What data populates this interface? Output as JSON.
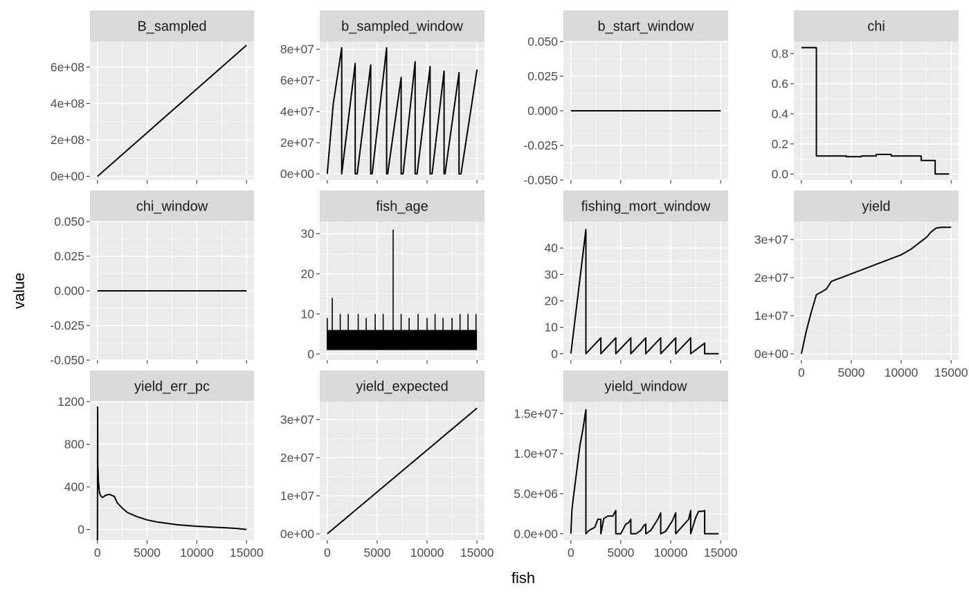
{
  "chart_data": {
    "type": "line",
    "layout": "facet_wrap",
    "xlabel": "fish",
    "ylabel": "value",
    "colors": {
      "panel_bg": "#ebebeb",
      "grid": "#ffffff",
      "strip_bg": "#d9d9d9",
      "line": "#000000"
    },
    "facets": [
      {
        "title": "B_sampled",
        "ylim": [
          -20000000,
          740000000
        ],
        "yticks": [
          0,
          200000000,
          400000000,
          600000000
        ],
        "yticklabels": [
          "0e+00",
          "2e+08",
          "4e+08",
          "6e+08"
        ],
        "series": [
          {
            "kind": "line",
            "x": [
              0,
              1000,
              2000,
              3000,
              4000,
              5000,
              6000,
              7000,
              8000,
              9000,
              10000,
              11000,
              12000,
              13000,
              14000,
              15000
            ],
            "y": [
              0,
              48000000,
              96000000,
              144000000,
              192000000,
              240000000,
              288000000,
              336000000,
              384000000,
              432000000,
              480000000,
              528000000,
              576000000,
              624000000,
              672000000,
              720000000
            ]
          }
        ]
      },
      {
        "title": "b_sampled_window",
        "ylim": [
          -4000000,
          85000000
        ],
        "yticks": [
          0,
          20000000,
          40000000,
          60000000,
          80000000
        ],
        "yticklabels": [
          "0e+00",
          "2e+07",
          "4e+07",
          "6e+07",
          "8e+07"
        ],
        "series": [
          {
            "kind": "line",
            "x": [
              0,
              600,
              1450,
              1450,
              2800,
              2800,
              3000,
              4350,
              4350,
              4500,
              5950,
              5950,
              6050,
              7400,
              7400,
              7600,
              8800,
              8800,
              9000,
              10300,
              10300,
              10500,
              11700,
              11700,
              11800,
              13200,
              13200,
              13400,
              15000
            ],
            "y": [
              0,
              45000000,
              81000000,
              0,
              71000000,
              0,
              0,
              70000000,
              0,
              0,
              81000000,
              0,
              0,
              62000000,
              0,
              0,
              72000000,
              0,
              0,
              69000000,
              0,
              0,
              66000000,
              0,
              0,
              65000000,
              0,
              0,
              67000000
            ]
          }
        ]
      },
      {
        "title": "b_start_window",
        "ylim": [
          -0.05,
          0.05
        ],
        "yticks": [
          -0.05,
          -0.025,
          0,
          0.025,
          0.05
        ],
        "yticklabels": [
          "-0.050",
          "-0.025",
          "0.000",
          "0.025",
          "0.050"
        ],
        "series": [
          {
            "kind": "line",
            "x": [
              0,
              15000
            ],
            "y": [
              0,
              0
            ]
          }
        ]
      },
      {
        "title": "chi",
        "ylim": [
          -0.04,
          0.88
        ],
        "yticks": [
          0,
          0.2,
          0.4,
          0.6,
          0.8
        ],
        "yticklabels": [
          "0.0",
          "0.2",
          "0.4",
          "0.6",
          "0.8"
        ],
        "series": [
          {
            "kind": "step",
            "x": [
              0,
              1500,
              1500,
              3000,
              3000,
              4500,
              4500,
              6000,
              6000,
              7500,
              7500,
              9000,
              9000,
              10500,
              10500,
              12000,
              12000,
              13400,
              13400,
              14800
            ],
            "y": [
              0.84,
              0.84,
              0.12,
              0.12,
              0.12,
              0.12,
              0.115,
              0.115,
              0.12,
              0.12,
              0.13,
              0.13,
              0.12,
              0.12,
              0.12,
              0.12,
              0.09,
              0.09,
              0.0,
              0.0
            ]
          }
        ]
      },
      {
        "title": "chi_window",
        "ylim": [
          -0.05,
          0.05
        ],
        "yticks": [
          -0.05,
          -0.025,
          0,
          0.025,
          0.05
        ],
        "yticklabels": [
          "-0.050",
          "-0.025",
          "0.000",
          "0.025",
          "0.050"
        ],
        "series": [
          {
            "kind": "line",
            "x": [
              0,
              15000
            ],
            "y": [
              0,
              0
            ]
          }
        ]
      },
      {
        "title": "fish_age",
        "ylim": [
          -1.5,
          33
        ],
        "yticks": [
          0,
          10,
          20,
          30
        ],
        "yticklabels": [
          "0",
          "10",
          "20",
          "30"
        ],
        "series": [
          {
            "kind": "band",
            "x": [
              0,
              15000
            ],
            "ymin": 1,
            "ymax": 6
          },
          {
            "kind": "spikes",
            "x": [
              0,
              500,
              1300,
              2100,
              3100,
              3900,
              4800,
              5600,
              6600,
              7400,
              8200,
              9100,
              10000,
              10800,
              11600,
              12500,
              13300,
              14100,
              14900
            ],
            "y": [
              9,
              14,
              10,
              10,
              10,
              9,
              10,
              10,
              31,
              10,
              9,
              10,
              9,
              10,
              9,
              9,
              10,
              10,
              10
            ]
          }
        ]
      },
      {
        "title": "fishing_mort_window",
        "ylim": [
          -2.4,
          50
        ],
        "yticks": [
          0,
          10,
          20,
          30,
          40
        ],
        "yticklabels": [
          "0",
          "10",
          "20",
          "30",
          "40"
        ],
        "series": [
          {
            "kind": "line",
            "x": [
              0,
              1500,
              1500,
              3000,
              3000,
              4500,
              4500,
              6000,
              6000,
              7500,
              7500,
              9000,
              9000,
              10500,
              10500,
              12000,
              12000,
              13400,
              13400,
              14800
            ],
            "y": [
              0,
              47,
              0,
              6,
              0,
              6,
              0,
              6,
              0,
              6,
              0,
              6,
              0,
              6,
              0,
              6,
              0,
              4,
              0,
              0
            ]
          }
        ]
      },
      {
        "title": "yield",
        "ylim": [
          -1650000,
          34700000
        ],
        "yticks": [
          0,
          10000000,
          20000000,
          30000000
        ],
        "yticklabels": [
          "0e+00",
          "1e+07",
          "2e+07",
          "3e+07"
        ],
        "xticks": [
          0,
          5000,
          10000,
          15000
        ],
        "xticklabels": [
          "0",
          "5000",
          "10000",
          "15000"
        ],
        "series": [
          {
            "kind": "line",
            "x": [
              0,
              500,
              1000,
              1500,
              2000,
              2500,
              3000,
              3500,
              4000,
              5000,
              6000,
              7000,
              8000,
              9000,
              10000,
              11000,
              12000,
              12500,
              13000,
              13500,
              14000,
              15000
            ],
            "y": [
              0,
              6000000,
              11000000,
              15500000,
              16200000,
              17000000,
              19000000,
              19500000,
              20000000,
              21000000,
              22000000,
              23000000,
              24000000,
              25000000,
              26000000,
              27500000,
              29500000,
              30500000,
              32000000,
              33000000,
              33200000,
              33200000
            ]
          }
        ]
      },
      {
        "title": "yield_err_pc",
        "ylim": [
          -100,
          1200
        ],
        "yticks": [
          0,
          400,
          800,
          1200
        ],
        "yticklabels": [
          "0",
          "400",
          "800",
          "1200"
        ],
        "xticks": [
          0,
          5000,
          10000,
          15000
        ],
        "xticklabels": [
          "0",
          "5000",
          "10000",
          "15000"
        ],
        "series": [
          {
            "kind": "line",
            "x": [
              0,
              20,
              40,
              100,
              200,
              300,
              500,
              800,
              1200,
              1700,
              2000,
              2500,
              3000,
              4000,
              5000,
              6000,
              8000,
              10000,
              12000,
              13000,
              14000,
              15000
            ],
            "y": [
              -100,
              1150,
              600,
              450,
              350,
              320,
              300,
              320,
              330,
              310,
              250,
              200,
              160,
              120,
              90,
              70,
              45,
              30,
              20,
              15,
              10,
              0
            ]
          }
        ]
      },
      {
        "title": "yield_expected",
        "ylim": [
          -1650000,
          34700000
        ],
        "yticks": [
          0,
          10000000,
          20000000,
          30000000
        ],
        "yticklabels": [
          "0e+00",
          "1e+07",
          "2e+07",
          "3e+07"
        ],
        "xticks": [
          0,
          5000,
          10000,
          15000
        ],
        "xticklabels": [
          "0",
          "5000",
          "10000",
          "15000"
        ],
        "series": [
          {
            "kind": "line",
            "x": [
              0,
              15000
            ],
            "y": [
              0,
              33000000
            ]
          }
        ]
      },
      {
        "title": "yield_window",
        "ylim": [
          -800000,
          16500000
        ],
        "yticks": [
          0,
          5000000,
          10000000,
          15000000
        ],
        "yticklabels": [
          "0.0e+00",
          "5.0e+06",
          "1.0e+07",
          "1.5e+07"
        ],
        "xticks": [
          0,
          5000,
          10000,
          15000
        ],
        "xticklabels": [
          "0",
          "5000",
          "10000",
          "15000"
        ],
        "series": [
          {
            "kind": "line",
            "x": [
              0,
              100,
              300,
              600,
              900,
              1200,
              1500,
              1500,
              1800,
              2100,
              2400,
              2700,
              3000,
              3000,
              3300,
              3300,
              3700,
              3700,
              4200,
              4500,
              4500,
              5000,
              5500,
              5800,
              6000,
              6000,
              6500,
              7000,
              7300,
              7500,
              7500,
              8000,
              8400,
              8700,
              9000,
              9000,
              9500,
              10000,
              10200,
              10500,
              10500,
              11000,
              11500,
              11800,
              12000,
              12000,
              12500,
              12800,
              13200,
              13400,
              13400,
              14800
            ],
            "y": [
              0,
              3000000,
              5000000,
              8000000,
              11000000,
              13000000,
              15500000,
              0,
              400000,
              600000,
              800000,
              1800000,
              1800000,
              0,
              1900000,
              1900000,
              2200000,
              2200000,
              2200000,
              2900000,
              0,
              0,
              1200000,
              1400000,
              1800000,
              0,
              0,
              400000,
              1000000,
              1200000,
              0,
              400000,
              1200000,
              1800000,
              2600000,
              0,
              300000,
              1300000,
              1700000,
              2600000,
              0,
              700000,
              1400000,
              1800000,
              2900000,
              0,
              2000000,
              2800000,
              2800000,
              2900000,
              0,
              0
            ]
          }
        ]
      }
    ]
  }
}
